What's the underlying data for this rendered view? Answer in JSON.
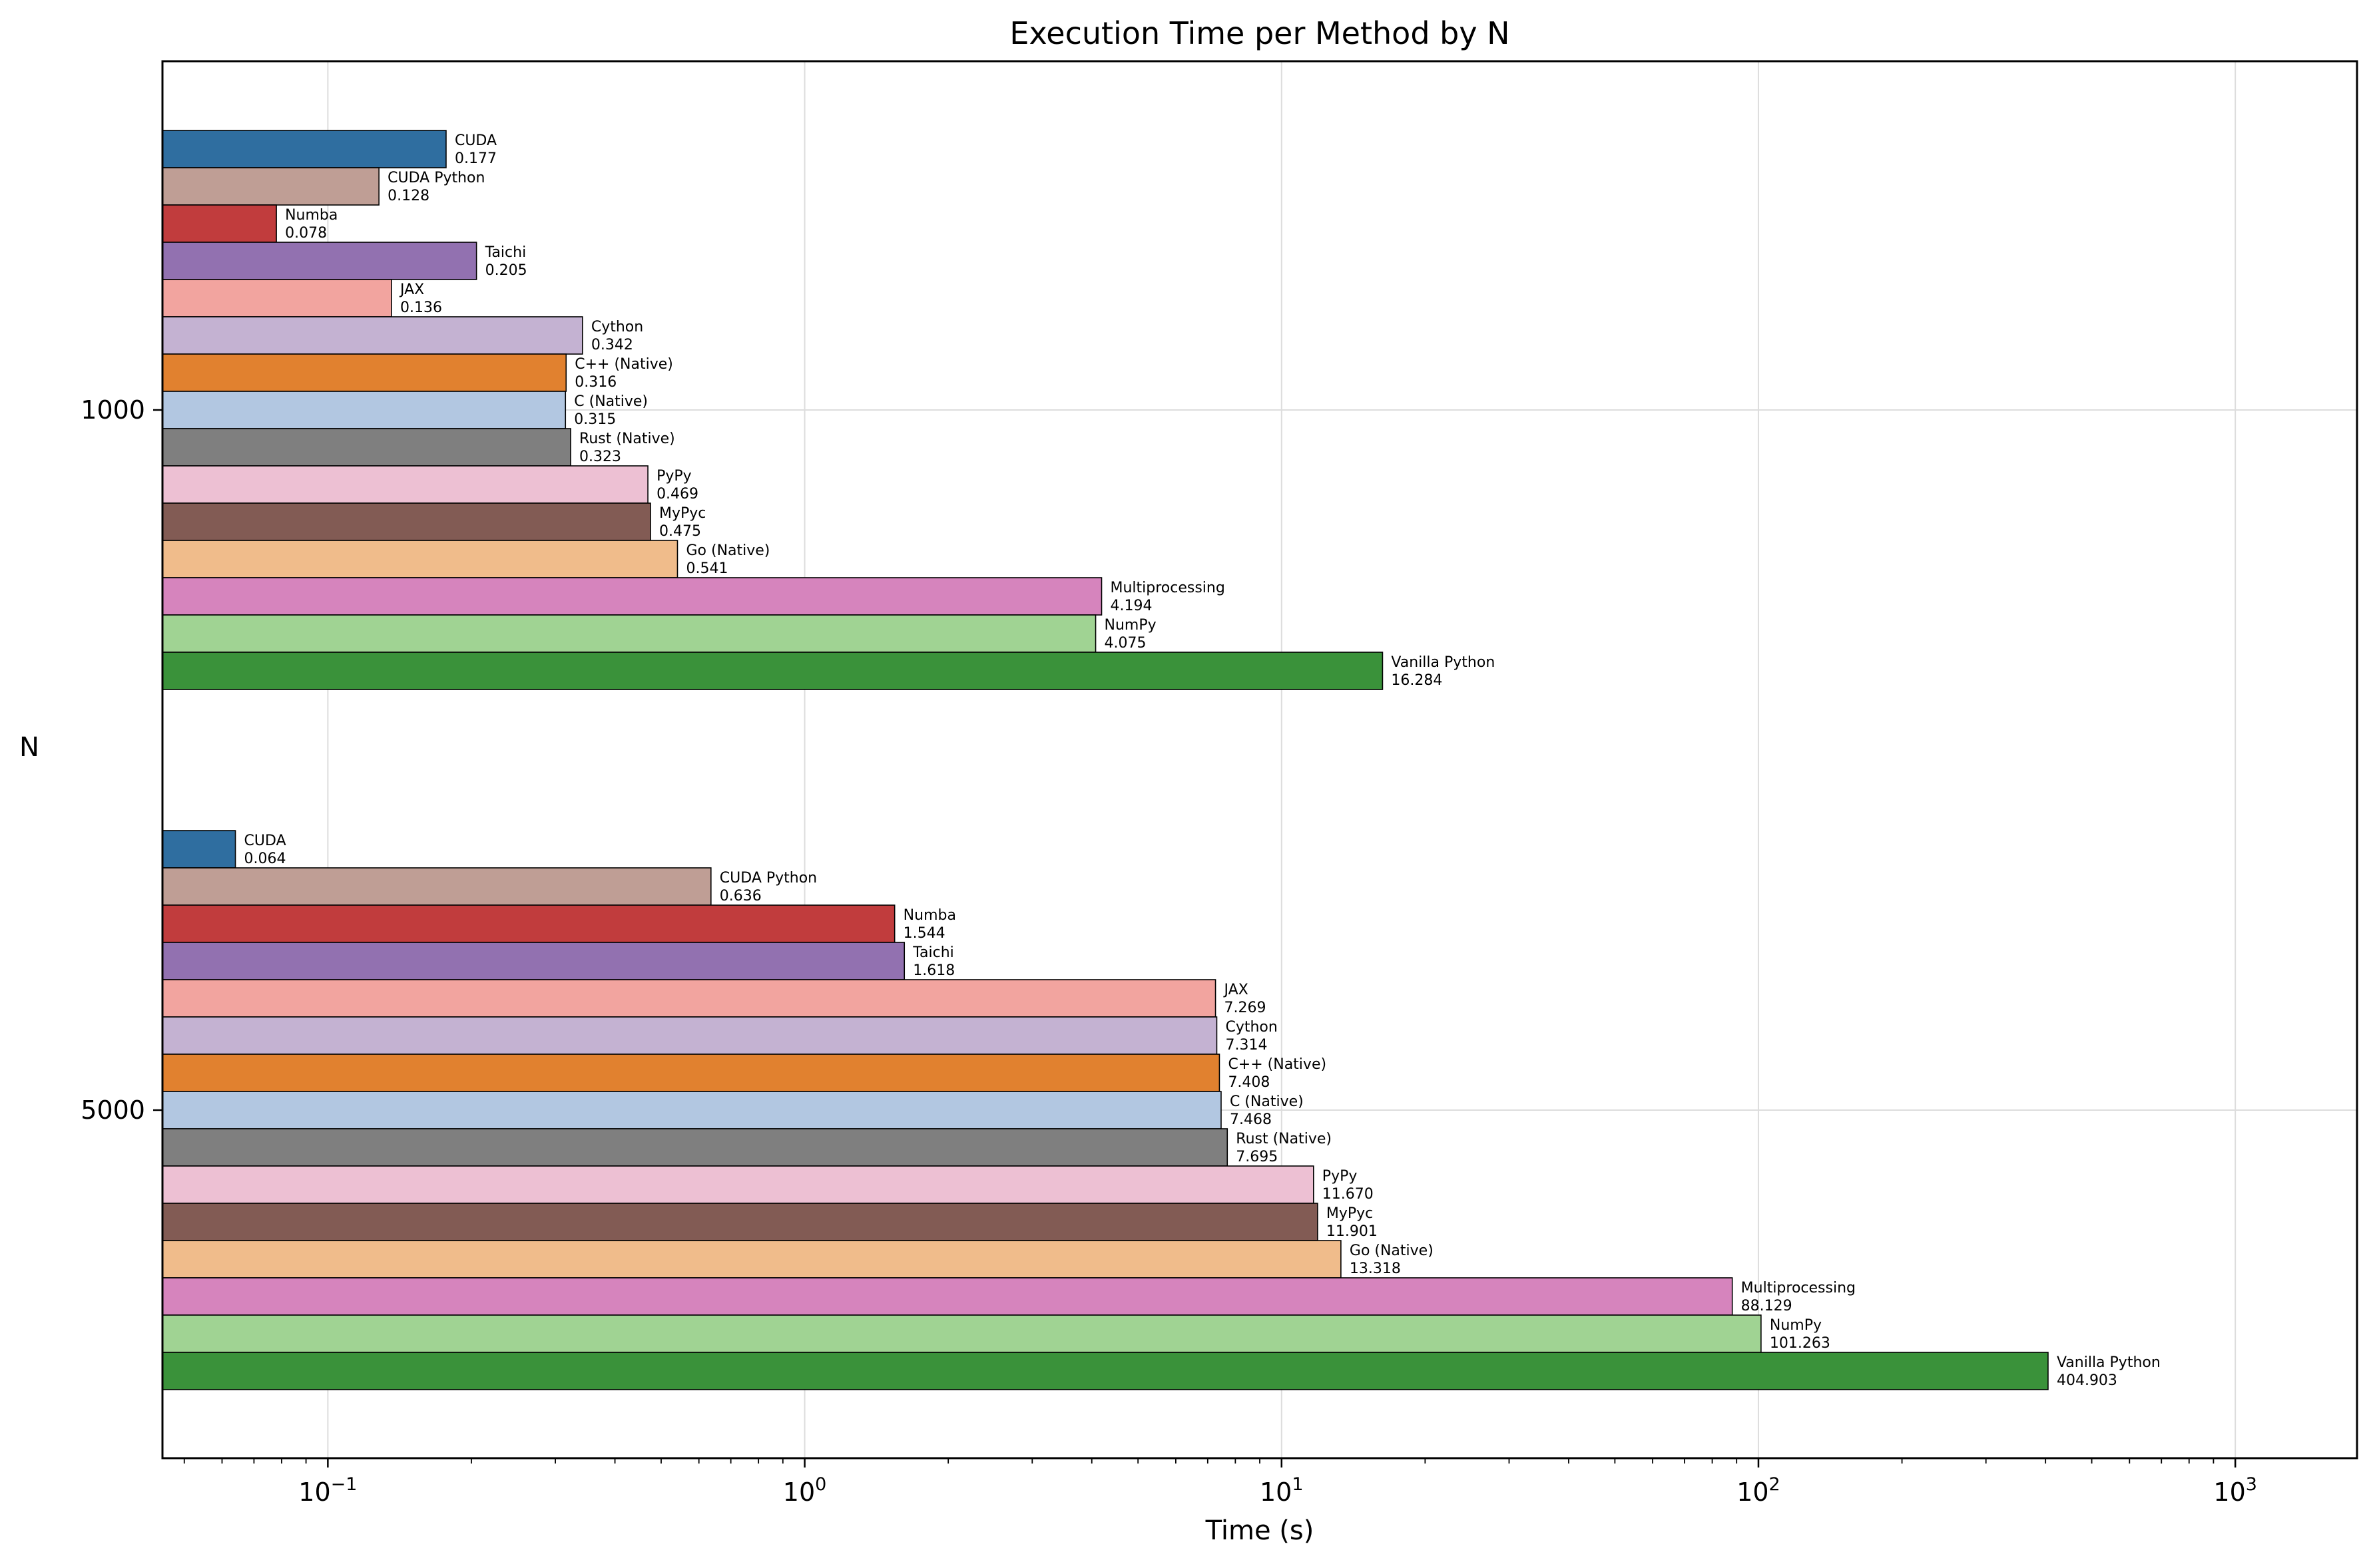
{
  "chart_data": {
    "type": "bar",
    "orientation": "horizontal",
    "title": "Execution Time per Method by N",
    "xlabel": "Time (s)",
    "ylabel": "N",
    "xscale": "log",
    "xlim": [
      0.045,
      1800
    ],
    "xticks": [
      {
        "value": 0.1,
        "base": "10",
        "exp": "−1"
      },
      {
        "value": 1,
        "base": "10",
        "exp": "0"
      },
      {
        "value": 10,
        "base": "10",
        "exp": "1"
      },
      {
        "value": 100,
        "base": "10",
        "exp": "2"
      },
      {
        "value": 1000,
        "base": "10",
        "exp": "3"
      }
    ],
    "grid": true,
    "legend": "none",
    "categories": [
      "1000",
      "5000"
    ],
    "series": [
      {
        "name": "CUDA",
        "color": "#2f6ea0",
        "values": [
          0.177,
          0.064
        ],
        "labels": [
          "0.177",
          "0.064"
        ]
      },
      {
        "name": "CUDA Python",
        "color": "#bf9e95",
        "values": [
          0.128,
          0.636
        ],
        "labels": [
          "0.128",
          "0.636"
        ]
      },
      {
        "name": "Numba",
        "color": "#c13c3d",
        "values": [
          0.078,
          1.544
        ],
        "labels": [
          "0.078",
          "1.544"
        ]
      },
      {
        "name": "Taichi",
        "color": "#9271b0",
        "values": [
          0.205,
          1.618
        ],
        "labels": [
          "0.205",
          "1.618"
        ]
      },
      {
        "name": "JAX",
        "color": "#f2a49f",
        "values": [
          0.136,
          7.269
        ],
        "labels": [
          "0.136",
          "7.269"
        ]
      },
      {
        "name": "Cython",
        "color": "#c4b2d2",
        "values": [
          0.342,
          7.314
        ],
        "labels": [
          "0.342",
          "7.314"
        ]
      },
      {
        "name": "C++ (Native)",
        "color": "#e1812f",
        "values": [
          0.316,
          7.408
        ],
        "labels": [
          "0.316",
          "7.408"
        ]
      },
      {
        "name": "C (Native)",
        "color": "#b2c7e1",
        "values": [
          0.315,
          7.468
        ],
        "labels": [
          "0.315",
          "7.468"
        ]
      },
      {
        "name": "Rust (Native)",
        "color": "#7f7f7f",
        "values": [
          0.323,
          7.695
        ],
        "labels": [
          "0.323",
          "7.695"
        ]
      },
      {
        "name": "PyPy",
        "color": "#edc0d3",
        "values": [
          0.469,
          11.67
        ],
        "labels": [
          "0.469",
          "11.670"
        ]
      },
      {
        "name": "MyPyc",
        "color": "#825b54",
        "values": [
          0.475,
          11.901
        ],
        "labels": [
          "0.475",
          "11.901"
        ]
      },
      {
        "name": "Go (Native)",
        "color": "#f0bc8b",
        "values": [
          0.541,
          13.318
        ],
        "labels": [
          "0.541",
          "13.318"
        ]
      },
      {
        "name": "Multiprocessing",
        "color": "#d684bd",
        "values": [
          4.194,
          88.129
        ],
        "labels": [
          "4.194",
          "88.129"
        ]
      },
      {
        "name": "NumPy",
        "color": "#a0d393",
        "values": [
          4.075,
          101.263
        ],
        "labels": [
          "4.075",
          "101.263"
        ]
      },
      {
        "name": "Vanilla Python",
        "color": "#3a923a",
        "values": [
          16.284,
          404.903
        ],
        "labels": [
          "16.284",
          "404.903"
        ]
      }
    ]
  }
}
